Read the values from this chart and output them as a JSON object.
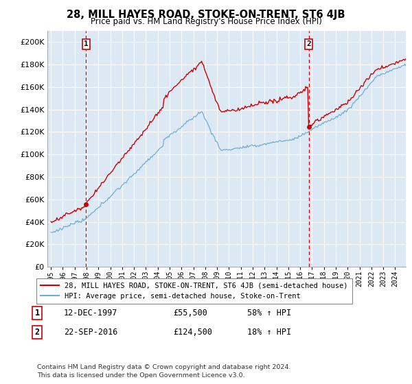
{
  "title": "28, MILL HAYES ROAD, STOKE-ON-TRENT, ST6 4JB",
  "subtitle": "Price paid vs. HM Land Registry's House Price Index (HPI)",
  "legend_line1": "28, MILL HAYES ROAD, STOKE-ON-TRENT, ST6 4JB (semi-detached house)",
  "legend_line2": "HPI: Average price, semi-detached house, Stoke-on-Trent",
  "annotation1_label": "1",
  "annotation1_date": "12-DEC-1997",
  "annotation1_price": "£55,500",
  "annotation1_hpi": "58% ↑ HPI",
  "annotation2_label": "2",
  "annotation2_date": "22-SEP-2016",
  "annotation2_price": "£124,500",
  "annotation2_hpi": "18% ↑ HPI",
  "footer": "Contains HM Land Registry data © Crown copyright and database right 2024.\nThis data is licensed under the Open Government Licence v3.0.",
  "sale1_year": 1997.95,
  "sale1_price": 55500,
  "sale2_year": 2016.72,
  "sale2_price": 124500,
  "hpi_color": "#6baed6",
  "price_color": "#cc0000",
  "dashed_color": "#cc0000",
  "bg_color": "#ffffff",
  "plot_bg_color": "#dce9f5",
  "grid_color": "#ffffff",
  "ylim_min": 0,
  "ylim_max": 210000,
  "xlim_min": 1994.7,
  "xlim_max": 2024.9
}
